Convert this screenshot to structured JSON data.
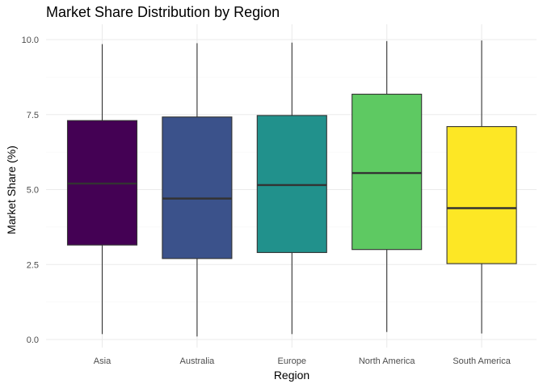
{
  "chart_data": {
    "type": "boxplot",
    "title": "Market Share Distribution by Region",
    "xlabel": "Region",
    "ylabel": "Market Share (%)",
    "ylim": [
      0,
      10
    ],
    "y_ticks": [
      "0.0",
      "2.5",
      "5.0",
      "7.5",
      "10.0"
    ],
    "grid": true,
    "legend": "none",
    "categories": [
      "Asia",
      "Australia",
      "Europe",
      "North America",
      "South America"
    ],
    "boxes": [
      {
        "category": "Asia",
        "min": 0.18,
        "q1": 3.15,
        "median": 5.2,
        "q3": 7.3,
        "max": 9.85,
        "color": "#440154"
      },
      {
        "category": "Australia",
        "min": 0.1,
        "q1": 2.7,
        "median": 4.7,
        "q3": 7.42,
        "max": 9.88,
        "color": "#3b528b"
      },
      {
        "category": "Europe",
        "min": 0.18,
        "q1": 2.9,
        "median": 5.15,
        "q3": 7.47,
        "max": 9.9,
        "color": "#21918c"
      },
      {
        "category": "North America",
        "min": 0.25,
        "q1": 3.0,
        "median": 5.55,
        "q3": 8.18,
        "max": 9.95,
        "color": "#5ec962"
      },
      {
        "category": "South America",
        "min": 0.2,
        "q1": 2.53,
        "median": 4.38,
        "q3": 7.1,
        "max": 9.97,
        "color": "#fde725"
      }
    ]
  }
}
